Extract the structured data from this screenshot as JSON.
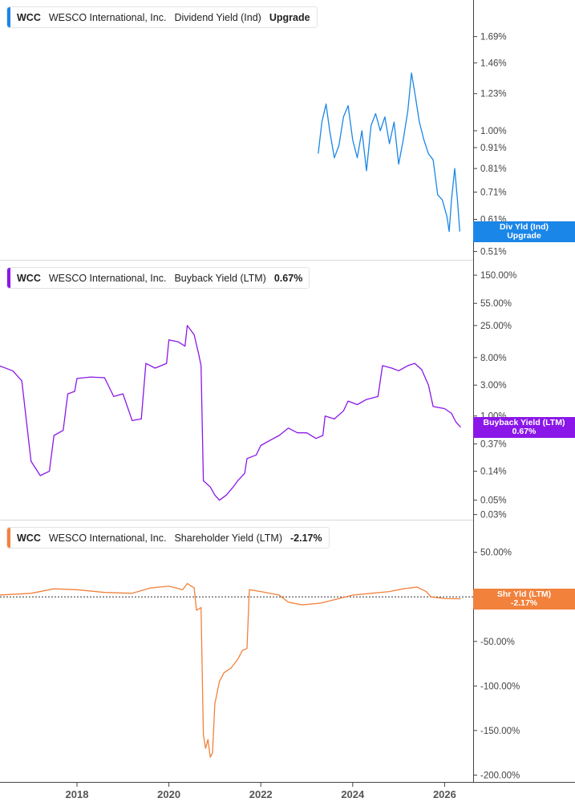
{
  "colors": {
    "div": "#1a86e8",
    "buyback": "#8a17e8",
    "shareholder": "#f2813c",
    "axis": "#444444",
    "grid": "#d9d9d9"
  },
  "x_axis": {
    "ticks": [
      "2018",
      "2020",
      "2022",
      "2024",
      "2026"
    ]
  },
  "panels": [
    {
      "ticker": "WCC",
      "company": "WESCO International, Inc.",
      "metric": "Dividend Yield (Ind)",
      "value": "Upgrade",
      "tag": [
        "Div Yld (Ind)",
        "Upgrade"
      ]
    },
    {
      "ticker": "WCC",
      "company": "WESCO International, Inc.",
      "metric": "Buyback Yield (LTM)",
      "value": "0.67%",
      "tag": [
        "Buyback Yield (LTM)",
        "0.67%"
      ]
    },
    {
      "ticker": "WCC",
      "company": "WESCO International, Inc.",
      "metric": "Shareholder Yield (LTM)",
      "value": "-2.17%",
      "tag": [
        "Shr Yld (LTM)",
        "-2.17%"
      ]
    }
  ],
  "chart_data": [
    {
      "type": "line",
      "scale": "log",
      "series": [
        {
          "name": "Dividend Yield (Ind)"
        }
      ],
      "y_ticks": [
        "1.69%",
        "1.46%",
        "1.23%",
        "1.00%",
        "0.91%",
        "0.81%",
        "0.71%",
        "0.61%",
        "0.51%"
      ],
      "y_tick_values": [
        1.69,
        1.46,
        1.23,
        1.0,
        0.91,
        0.81,
        0.71,
        0.61,
        0.51
      ],
      "ylim": [
        0.5,
        2.0
      ],
      "points": [
        [
          2023.25,
          0.88
        ],
        [
          2023.33,
          1.05
        ],
        [
          2023.42,
          1.16
        ],
        [
          2023.5,
          1.0
        ],
        [
          2023.6,
          0.86
        ],
        [
          2023.7,
          0.92
        ],
        [
          2023.8,
          1.08
        ],
        [
          2023.9,
          1.15
        ],
        [
          2024.0,
          0.95
        ],
        [
          2024.1,
          0.86
        ],
        [
          2024.2,
          1.0
        ],
        [
          2024.3,
          0.8
        ],
        [
          2024.4,
          1.03
        ],
        [
          2024.5,
          1.1
        ],
        [
          2024.6,
          1.0
        ],
        [
          2024.7,
          1.08
        ],
        [
          2024.8,
          0.93
        ],
        [
          2024.9,
          1.05
        ],
        [
          2025.0,
          0.83
        ],
        [
          2025.1,
          0.95
        ],
        [
          2025.2,
          1.12
        ],
        [
          2025.28,
          1.38
        ],
        [
          2025.36,
          1.22
        ],
        [
          2025.45,
          1.05
        ],
        [
          2025.55,
          0.95
        ],
        [
          2025.65,
          0.88
        ],
        [
          2025.75,
          0.85
        ],
        [
          2025.85,
          0.7
        ],
        [
          2025.95,
          0.68
        ],
        [
          2026.05,
          0.62
        ],
        [
          2026.1,
          0.57
        ],
        [
          2026.15,
          0.68
        ],
        [
          2026.22,
          0.81
        ],
        [
          2026.28,
          0.68
        ],
        [
          2026.33,
          0.57
        ]
      ]
    },
    {
      "type": "line",
      "scale": "log",
      "series": [
        {
          "name": "Buyback Yield (LTM)"
        }
      ],
      "y_ticks": [
        "150.00%",
        "55.00%",
        "25.00%",
        "8.00%",
        "3.00%",
        "1.00%",
        "0.37%",
        "0.14%",
        "0.05%",
        "0.03%"
      ],
      "y_tick_values": [
        150,
        55,
        25,
        8,
        3,
        1,
        0.37,
        0.14,
        0.05,
        0.03
      ],
      "ylim": [
        0.025,
        200
      ],
      "points": [
        [
          2016.3,
          6.0
        ],
        [
          2016.6,
          5.0
        ],
        [
          2016.8,
          3.5
        ],
        [
          2017.0,
          0.2
        ],
        [
          2017.2,
          0.12
        ],
        [
          2017.4,
          0.14
        ],
        [
          2017.5,
          0.5
        ],
        [
          2017.7,
          0.6
        ],
        [
          2017.8,
          2.2
        ],
        [
          2017.95,
          2.4
        ],
        [
          2018.0,
          3.8
        ],
        [
          2018.3,
          4.0
        ],
        [
          2018.6,
          3.9
        ],
        [
          2018.8,
          2.0
        ],
        [
          2019.0,
          2.2
        ],
        [
          2019.2,
          0.85
        ],
        [
          2019.4,
          0.9
        ],
        [
          2019.5,
          6.5
        ],
        [
          2019.7,
          5.5
        ],
        [
          2019.95,
          6.5
        ],
        [
          2020.0,
          15.0
        ],
        [
          2020.2,
          14.0
        ],
        [
          2020.35,
          12.0
        ],
        [
          2020.4,
          25.0
        ],
        [
          2020.55,
          18.0
        ],
        [
          2020.65,
          9.0
        ],
        [
          2020.7,
          6.0
        ],
        [
          2020.75,
          0.1
        ],
        [
          2020.9,
          0.08
        ],
        [
          2021.0,
          0.06
        ],
        [
          2021.1,
          0.05
        ],
        [
          2021.25,
          0.06
        ],
        [
          2021.4,
          0.08
        ],
        [
          2021.5,
          0.1
        ],
        [
          2021.65,
          0.13
        ],
        [
          2021.7,
          0.22
        ],
        [
          2021.9,
          0.25
        ],
        [
          2022.0,
          0.35
        ],
        [
          2022.2,
          0.42
        ],
        [
          2022.4,
          0.5
        ],
        [
          2022.6,
          0.65
        ],
        [
          2022.8,
          0.55
        ],
        [
          2023.0,
          0.55
        ],
        [
          2023.2,
          0.45
        ],
        [
          2023.35,
          0.5
        ],
        [
          2023.4,
          1.0
        ],
        [
          2023.6,
          0.9
        ],
        [
          2023.8,
          1.2
        ],
        [
          2023.9,
          1.7
        ],
        [
          2024.1,
          1.5
        ],
        [
          2024.3,
          1.8
        ],
        [
          2024.55,
          2.0
        ],
        [
          2024.65,
          6.0
        ],
        [
          2024.85,
          5.5
        ],
        [
          2025.0,
          5.0
        ],
        [
          2025.2,
          6.0
        ],
        [
          2025.35,
          6.5
        ],
        [
          2025.5,
          5.2
        ],
        [
          2025.65,
          3.0
        ],
        [
          2025.75,
          1.4
        ],
        [
          2026.0,
          1.3
        ],
        [
          2026.15,
          1.1
        ],
        [
          2026.25,
          0.8
        ],
        [
          2026.35,
          0.67
        ]
      ]
    },
    {
      "type": "line",
      "scale": "linear",
      "series": [
        {
          "name": "Shareholder Yield (LTM)"
        }
      ],
      "y_ticks": [
        "50.00%",
        "0.00%",
        "-50.00%",
        "-100.00%",
        "-150.00%",
        "-200.00%"
      ],
      "y_tick_values": [
        50,
        0,
        -50,
        -100,
        -150,
        -200
      ],
      "ylim": [
        -205,
        65
      ],
      "points": [
        [
          2016.3,
          2.0
        ],
        [
          2017.0,
          4.0
        ],
        [
          2017.5,
          9.0
        ],
        [
          2018.0,
          8.0
        ],
        [
          2018.6,
          5.0
        ],
        [
          2019.2,
          4.0
        ],
        [
          2019.6,
          10.0
        ],
        [
          2020.0,
          12.0
        ],
        [
          2020.3,
          8.0
        ],
        [
          2020.4,
          15.0
        ],
        [
          2020.55,
          10.0
        ],
        [
          2020.6,
          -15.0
        ],
        [
          2020.7,
          -12.0
        ],
        [
          2020.75,
          -155.0
        ],
        [
          2020.8,
          -170.0
        ],
        [
          2020.85,
          -160.0
        ],
        [
          2020.9,
          -180.0
        ],
        [
          2020.95,
          -175.0
        ],
        [
          2021.0,
          -120.0
        ],
        [
          2021.1,
          -95.0
        ],
        [
          2021.2,
          -85.0
        ],
        [
          2021.35,
          -80.0
        ],
        [
          2021.5,
          -70.0
        ],
        [
          2021.6,
          -60.0
        ],
        [
          2021.7,
          -58.0
        ],
        [
          2021.75,
          8.0
        ],
        [
          2022.0,
          6.0
        ],
        [
          2022.4,
          2.0
        ],
        [
          2022.6,
          -6.0
        ],
        [
          2022.9,
          -9.0
        ],
        [
          2023.3,
          -7.0
        ],
        [
          2023.7,
          -2.0
        ],
        [
          2024.0,
          2.0
        ],
        [
          2024.4,
          4.0
        ],
        [
          2024.8,
          6.0
        ],
        [
          2025.1,
          9.0
        ],
        [
          2025.4,
          11.0
        ],
        [
          2025.6,
          6.0
        ],
        [
          2025.7,
          0.0
        ],
        [
          2026.0,
          -2.0
        ],
        [
          2026.35,
          -2.17
        ]
      ]
    }
  ]
}
